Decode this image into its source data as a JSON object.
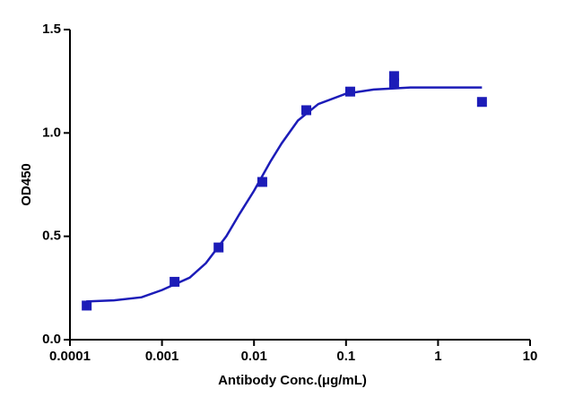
{
  "chart_data": {
    "type": "scatter",
    "x_label": "Antibody Conc.(μg/mL)",
    "y_label": "OD450",
    "x_log": true,
    "xlim": [
      0.0001,
      10
    ],
    "xticks": [
      0.0001,
      0.001,
      0.01,
      0.1,
      1,
      10
    ],
    "ylim": [
      0,
      1.5
    ],
    "yticks": [
      {
        "value": 0,
        "label": "0.0"
      },
      {
        "value": 0.5,
        "label": "0.5"
      },
      {
        "value": 1,
        "label": "1.0"
      },
      {
        "value": 1.5,
        "label": "1.5"
      }
    ],
    "series": [
      {
        "type": "scatter",
        "color": "#1c1cb8",
        "x": [
          0.000152,
          0.00137,
          0.00412,
          0.0123,
          0.037,
          0.111,
          0.333,
          0.333,
          3
        ],
        "values": [
          0.165,
          0.28,
          0.446,
          0.763,
          1.11,
          1.2,
          1.275,
          1.24,
          1.15
        ]
      },
      {
        "type": "line",
        "color": "#1c1cb8",
        "x": [
          0.00015,
          0.0003,
          0.0006,
          0.001,
          0.002,
          0.003,
          0.005,
          0.007,
          0.01,
          0.015,
          0.02,
          0.03,
          0.05,
          0.1,
          0.2,
          0.5,
          1,
          3
        ],
        "values": [
          0.185,
          0.19,
          0.205,
          0.24,
          0.3,
          0.37,
          0.5,
          0.61,
          0.72,
          0.86,
          0.95,
          1.06,
          1.14,
          1.19,
          1.21,
          1.22,
          1.22,
          1.22
        ]
      }
    ]
  }
}
